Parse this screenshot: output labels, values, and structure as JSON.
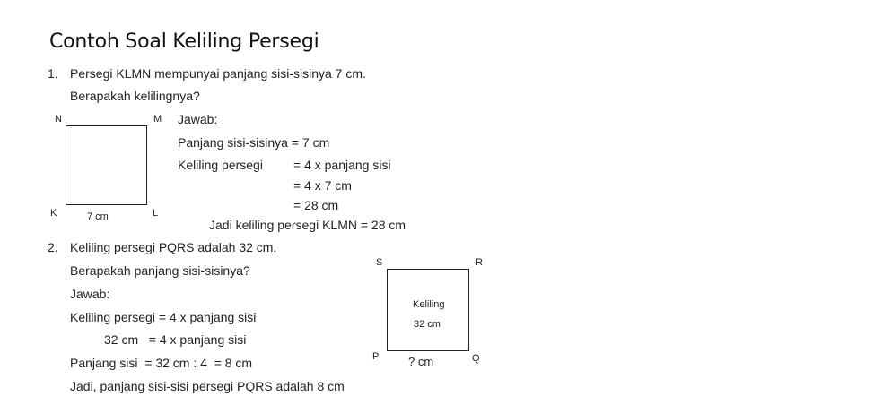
{
  "title": "Contoh Soal Keliling Persegi",
  "problem1": {
    "number": "1.",
    "statement": "Persegi KLMN mempunyai panjang sisi-sisinya 7 cm.",
    "question": "Berapakah kelilingnya?",
    "figure": {
      "labels": {
        "N": "N",
        "M": "M",
        "K": "K",
        "L": "L"
      },
      "side_label": "7 cm"
    },
    "answer_label": "Jawab:",
    "side_line": "Panjang sisi-sisinya = 7 cm",
    "keliling_label": "Keliling persegi",
    "steps": [
      "= 4 x panjang sisi",
      "= 4 x 7 cm",
      "= 28 cm"
    ],
    "conclusion": "Jadi keliling persegi KLMN = 28 cm"
  },
  "problem2": {
    "number": "2.",
    "statement": "Keliling persegi PQRS adalah 32 cm.",
    "question": "Berapakah panjang sisi-sisinya?",
    "answer_label": "Jawab:",
    "line1": "Keliling persegi = 4 x panjang sisi",
    "line2": "32 cm   = 4 x panjang sisi",
    "line3": "Panjang sisi  = 32 cm : 4  = 8 cm",
    "conclusion": "Jadi, panjang sisi-sisi persegi PQRS adalah 8 cm",
    "figure": {
      "labels": {
        "S": "S",
        "R": "R",
        "P": "P",
        "Q": "Q"
      },
      "inner_label": "Keliling",
      "inner_value": "32 cm",
      "side_label": "? cm"
    }
  }
}
